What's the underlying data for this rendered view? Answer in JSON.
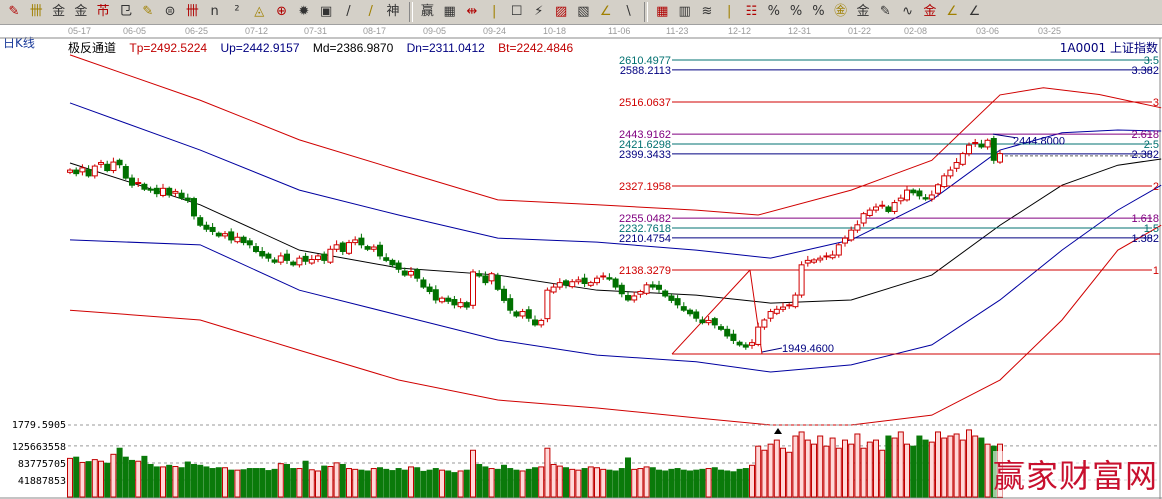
{
  "toolbar": {
    "icons": [
      "pen-icon",
      "grid-icon",
      "golden-grid-icon",
      "golden-grid2-icon",
      "fib-icon",
      "wave-icon",
      "pen2-icon",
      "circle-icon",
      "parallel-icon",
      "n2-icon",
      "triangle-icon",
      "target-icon",
      "spiral-icon",
      "box-icon",
      "lines-icon",
      "god-icon",
      "win-icon",
      "numbers-icon",
      "width-icon",
      "rect-icon",
      "fan-icon",
      "box-fan-icon",
      "box-fan2-icon",
      "angle-icon",
      "angle2-icon",
      "matrix-icon",
      "matrix2-icon",
      "slope-icon",
      "bars-icon",
      "percent-line-icon",
      "percent-icon",
      "percent-lines-icon",
      "gold-circle-icon",
      "gold-lines-icon",
      "gold-pen-icon",
      "wave2-icon",
      "gold-icon",
      "angle3-icon",
      "f-angle-icon",
      "gold-angle-icon",
      "god-angle-icon",
      "win-angle-icon",
      "four-angle-icon"
    ]
  },
  "period_label": "日K线",
  "indicator": {
    "name": "极反通道",
    "tp": "Tp=2492.5224",
    "up": "Up=2442.9157",
    "md": "Md=2386.9870",
    "dn": "Dn=2311.0412",
    "bt": "Bt=2242.4846"
  },
  "symbol": "1A0001  上证指数",
  "watermark": "赢家财富网",
  "colors": {
    "up": "#d00000",
    "down": "#007000",
    "band_outer": "#d00000",
    "band_inner": "#0000a0",
    "band_mid": "#000000",
    "volume_up": "#c00000",
    "volume_down": "#0a7a0a"
  },
  "chart_data": {
    "type": "candlestick",
    "x_tick_labels": [
      "05-17",
      "06-05",
      "06-25",
      "07-12",
      "07-31",
      "08-17",
      "09-05",
      "09-24",
      "10-18",
      "11-06",
      "11-23",
      "12-12",
      "12-31",
      "01-22",
      "02-08",
      "03-06",
      "03-25"
    ],
    "ylim": [
      1779.5905,
      2620
    ],
    "close": [
      2363,
      2355,
      2368,
      2350,
      2372,
      2380,
      2362,
      2381,
      2375,
      2345,
      2329,
      2335,
      2320,
      2318,
      2310,
      2322,
      2307,
      2315,
      2300,
      2295,
      2260,
      2239,
      2230,
      2225,
      2215,
      2220,
      2206,
      2212,
      2200,
      2195,
      2180,
      2170,
      2165,
      2156,
      2170,
      2160,
      2150,
      2165,
      2158,
      2162,
      2170,
      2160,
      2185,
      2195,
      2180,
      2200,
      2206,
      2195,
      2185,
      2190,
      2170,
      2160,
      2150,
      2140,
      2127,
      2135,
      2120,
      2100,
      2090,
      2071,
      2075,
      2068,
      2060,
      2065,
      2055,
      2134,
      2125,
      2110,
      2130,
      2095,
      2070,
      2048,
      2035,
      2045,
      2030,
      2015,
      2025,
      2093,
      2100,
      2110,
      2105,
      2112,
      2116,
      2108,
      2110,
      2120,
      2125,
      2118,
      2100,
      2085,
      2071,
      2080,
      2090,
      2105,
      2100,
      2095,
      2080,
      2070,
      2060,
      2048,
      2040,
      2030,
      2020,
      2025,
      2015,
      2005,
      1990,
      1980,
      1970,
      1965,
      1975,
      2010,
      2026,
      2045,
      2050,
      2055,
      2060,
      2082,
      2150,
      2160,
      2161,
      2165,
      2170,
      2172,
      2195,
      2210,
      2228,
      2240,
      2265,
      2273,
      2280,
      2284,
      2270,
      2290,
      2300,
      2318,
      2312,
      2305,
      2298,
      2307,
      2330,
      2350,
      2363,
      2380,
      2400,
      2419,
      2425,
      2415,
      2430,
      2385,
      2400
    ],
    "volume": [
      95000000,
      98000000,
      85000000,
      87000000,
      92000000,
      88000000,
      83000000,
      105000000,
      120000000,
      98000000,
      90000000,
      88000000,
      100000000,
      80000000,
      74000000,
      74000000,
      78000000,
      75000000,
      72000000,
      86000000,
      80000000,
      78000000,
      74000000,
      70000000,
      72000000,
      72000000,
      66000000,
      66000000,
      67000000,
      70000000,
      70000000,
      70000000,
      65000000,
      68000000,
      82000000,
      80000000,
      70000000,
      70000000,
      88000000,
      67000000,
      64000000,
      76000000,
      75000000,
      84000000,
      80000000,
      70000000,
      68000000,
      66000000,
      64000000,
      70000000,
      72000000,
      68000000,
      65000000,
      70000000,
      66000000,
      74000000,
      72000000,
      63000000,
      66000000,
      70000000,
      66000000,
      64000000,
      60000000,
      64000000,
      66000000,
      115000000,
      80000000,
      74000000,
      70000000,
      68000000,
      78000000,
      70000000,
      66000000,
      64000000,
      68000000,
      72000000,
      74000000,
      120000000,
      80000000,
      76000000,
      72000000,
      68000000,
      66000000,
      70000000,
      74000000,
      72000000,
      68000000,
      66000000,
      64000000,
      70000000,
      96000000,
      68000000,
      70000000,
      74000000,
      72000000,
      66000000,
      64000000,
      68000000,
      70000000,
      66000000,
      64000000,
      66000000,
      68000000,
      70000000,
      72000000,
      66000000,
      64000000,
      62000000,
      68000000,
      70000000,
      78000000,
      125000000,
      115000000,
      130000000,
      140000000,
      120000000,
      110000000,
      150000000,
      160000000,
      140000000,
      130000000,
      150000000,
      125000000,
      145000000,
      120000000,
      140000000,
      130000000,
      155000000,
      120000000,
      135000000,
      140000000,
      115000000,
      150000000,
      145000000,
      160000000,
      130000000,
      125000000,
      150000000,
      140000000,
      135000000,
      160000000,
      145000000,
      150000000,
      155000000,
      140000000,
      165000000,
      150000000,
      145000000,
      130000000,
      125000000,
      130000000
    ],
    "volume_tick_labels": [
      "125663558",
      "83775705",
      "41887853"
    ],
    "volume_ticks": [
      125663558,
      83775705,
      41887853
    ],
    "bands": [
      {
        "name": "Tp",
        "color": "#d00000",
        "points": [
          [
            0,
            2622
          ],
          [
            21,
            2520
          ],
          [
            37,
            2431
          ],
          [
            53,
            2363
          ],
          [
            69,
            2296
          ],
          [
            85,
            2285
          ],
          [
            101,
            2273
          ],
          [
            111,
            2262
          ],
          [
            126,
            2318
          ],
          [
            139,
            2385
          ],
          [
            150,
            2532
          ],
          [
            157,
            2548
          ],
          [
            166,
            2533
          ],
          [
            176,
            2503
          ]
        ]
      },
      {
        "name": "Up",
        "color": "#0000a0",
        "points": [
          [
            0,
            2514
          ],
          [
            21,
            2408
          ],
          [
            37,
            2318
          ],
          [
            53,
            2262
          ],
          [
            69,
            2210
          ],
          [
            85,
            2201
          ],
          [
            101,
            2183
          ],
          [
            113,
            2165
          ],
          [
            126,
            2206
          ],
          [
            139,
            2296
          ],
          [
            150,
            2408
          ],
          [
            160,
            2447
          ],
          [
            169,
            2453
          ],
          [
            176,
            2451
          ]
        ]
      },
      {
        "name": "Md",
        "color": "#000000",
        "points": [
          [
            0,
            2379
          ],
          [
            21,
            2285
          ],
          [
            37,
            2183
          ],
          [
            53,
            2143
          ],
          [
            69,
            2127
          ],
          [
            85,
            2093
          ],
          [
            101,
            2082
          ],
          [
            113,
            2064
          ],
          [
            126,
            2071
          ],
          [
            139,
            2127
          ],
          [
            150,
            2239
          ],
          [
            160,
            2329
          ],
          [
            169,
            2374
          ],
          [
            176,
            2388
          ]
        ]
      },
      {
        "name": "Dn",
        "color": "#0000a0",
        "points": [
          [
            0,
            2206
          ],
          [
            21,
            2195
          ],
          [
            37,
            2093
          ],
          [
            53,
            2037
          ],
          [
            69,
            1981
          ],
          [
            85,
            1947
          ],
          [
            101,
            1932
          ],
          [
            113,
            1909
          ],
          [
            126,
            1925
          ],
          [
            139,
            1970
          ],
          [
            150,
            2071
          ],
          [
            160,
            2183
          ],
          [
            169,
            2273
          ],
          [
            176,
            2329
          ]
        ]
      },
      {
        "name": "Bt",
        "color": "#d00000",
        "points": [
          [
            0,
            2048
          ],
          [
            21,
            2026
          ],
          [
            37,
            1958
          ],
          [
            53,
            1891
          ],
          [
            69,
            1846
          ],
          [
            85,
            1828
          ],
          [
            101,
            1806
          ],
          [
            113,
            1790
          ],
          [
            126,
            1790
          ],
          [
            139,
            1812
          ],
          [
            150,
            1891
          ],
          [
            160,
            2026
          ],
          [
            169,
            2183
          ],
          [
            176,
            2239
          ]
        ]
      }
    ],
    "fib_levels": [
      {
        "price": "2610.4977",
        "ratio": "3.5",
        "color": "#007070"
      },
      {
        "price": "2588.2113",
        "ratio": "3.382",
        "color": "#000080"
      },
      {
        "price": "2516.0637",
        "ratio": "3",
        "color": "#d00000"
      },
      {
        "price": "2443.9162",
        "ratio": "2.618",
        "color": "#800080"
      },
      {
        "price": "2421.6298",
        "ratio": "2.5",
        "color": "#007070"
      },
      {
        "price": "2399.3433",
        "ratio": "2.382",
        "color": "#000080"
      },
      {
        "price": "2327.1958",
        "ratio": "2",
        "color": "#d00000"
      },
      {
        "price": "2255.0482",
        "ratio": "1.618",
        "color": "#800080"
      },
      {
        "price": "2232.7618",
        "ratio": "1.5",
        "color": "#007070"
      },
      {
        "price": "2210.4754",
        "ratio": "1.382",
        "color": "#000080"
      },
      {
        "price": "2138.3279",
        "ratio": "1",
        "color": "#d00000"
      }
    ],
    "low_mark": "1949.4600",
    "high_mark": "2444.8000",
    "bottom_label": "1779.5905"
  }
}
